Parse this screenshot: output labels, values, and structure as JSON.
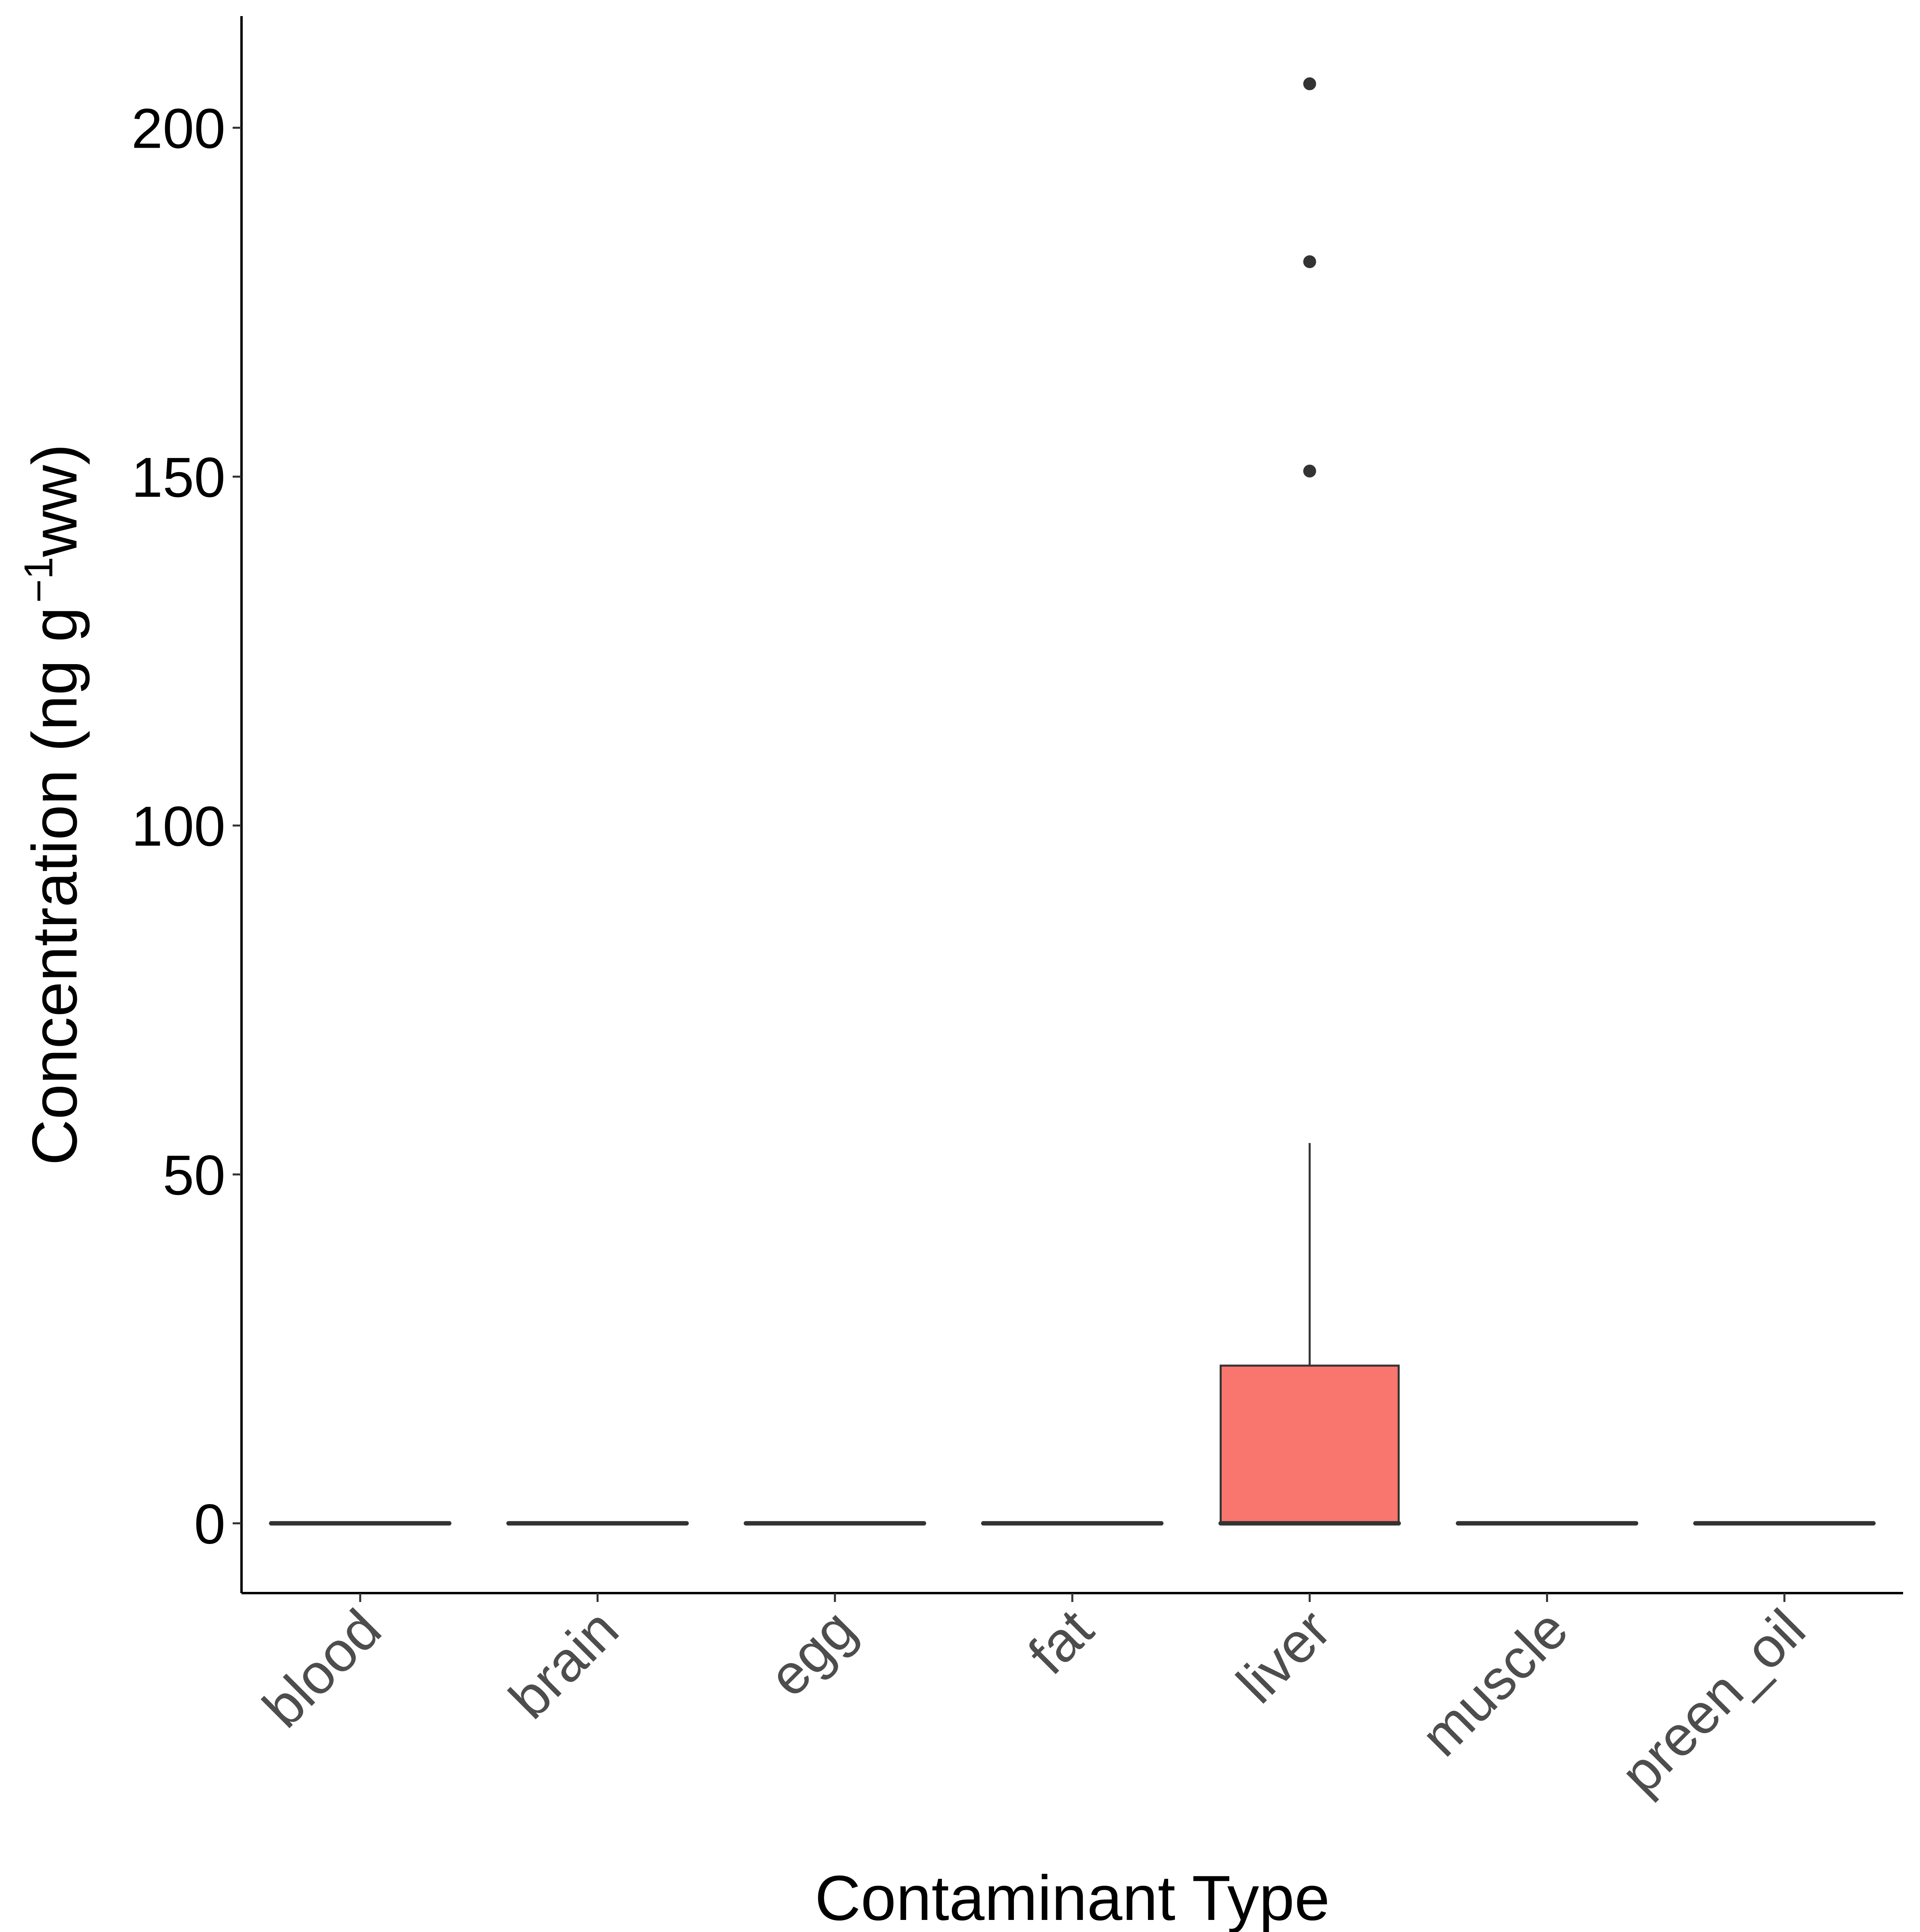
{
  "chart_data": {
    "type": "box",
    "xlabel": "Contaminant Type",
    "ylabel": {
      "prefix": "Concentration (ng g",
      "superscript": "−1",
      "suffix": "ww)"
    },
    "yticks": [
      0,
      50,
      100,
      150,
      200
    ],
    "ylim": [
      -10,
      216
    ],
    "grid": false,
    "categories": [
      "blood",
      "brain",
      "egg",
      "fat",
      "liver",
      "muscle",
      "preen_oil"
    ],
    "boxes": [
      {
        "category": "blood",
        "min": 0,
        "q1": 0,
        "median": 0,
        "q3": 0,
        "max": 0,
        "outliers": []
      },
      {
        "category": "brain",
        "min": 0,
        "q1": 0,
        "median": 0,
        "q3": 0,
        "max": 0,
        "outliers": []
      },
      {
        "category": "egg",
        "min": 0,
        "q1": 0,
        "median": 0,
        "q3": 0,
        "max": 0,
        "outliers": []
      },
      {
        "category": "fat",
        "min": 0,
        "q1": 0,
        "median": 0,
        "q3": 0,
        "max": 0,
        "outliers": []
      },
      {
        "category": "liver",
        "min": 0,
        "q1": 0,
        "median": 0,
        "q3": 22.6,
        "max": 54.5,
        "outliers": [
          150.8,
          180.8,
          206.3
        ]
      },
      {
        "category": "muscle",
        "min": 0,
        "q1": 0,
        "median": 0,
        "q3": 0,
        "max": 0,
        "outliers": []
      },
      {
        "category": "preen_oil",
        "min": 0,
        "q1": 0,
        "median": 0,
        "q3": 0,
        "max": 0,
        "outliers": []
      }
    ],
    "colors": {
      "box_fill": "#F8766D",
      "box_line": "#333333",
      "axis_line": "#000000",
      "outlier": "#333333"
    }
  }
}
